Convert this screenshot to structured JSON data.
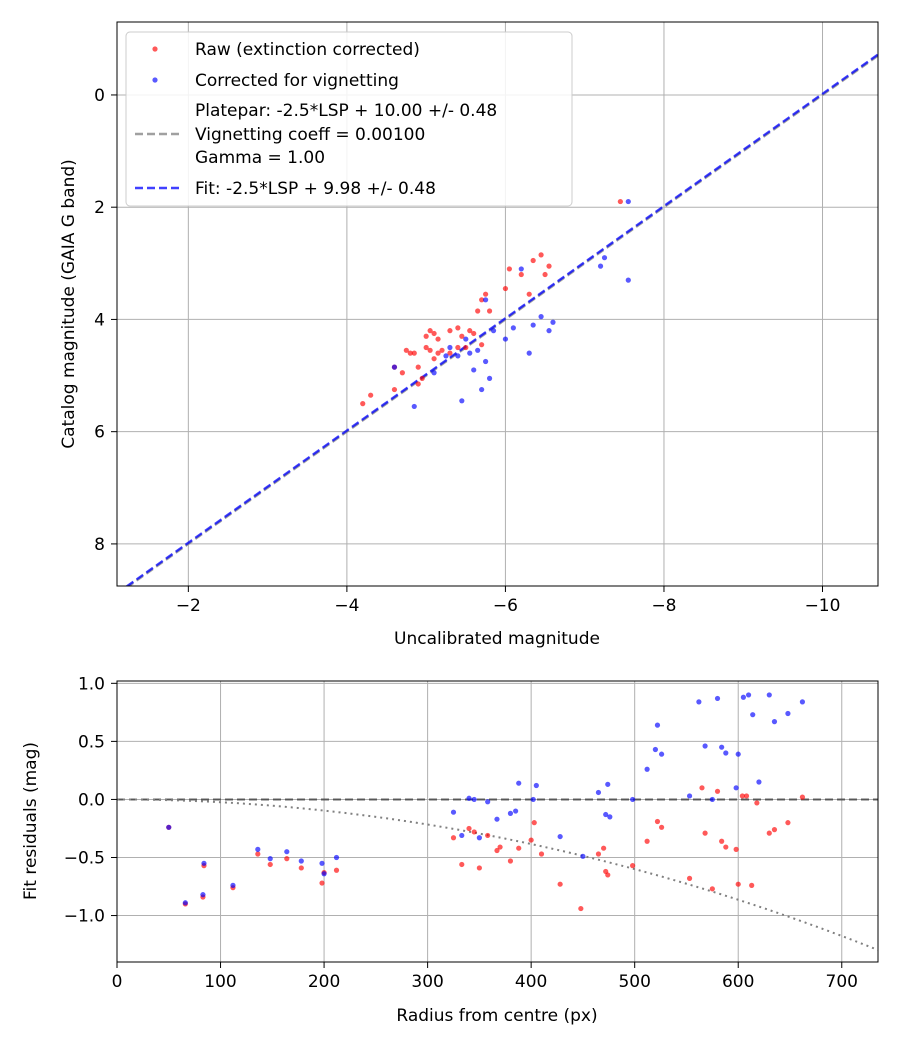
{
  "chart_data": [
    {
      "type": "scatter",
      "xlabel": "Uncalibrated magnitude",
      "ylabel": "Catalog magnitude (GAIA G band)",
      "xlim": [
        -1.1,
        -10.7
      ],
      "ylim": [
        8.75,
        -1.3
      ],
      "y_inverted": true,
      "grid": true,
      "legend_position": "top-left",
      "xticks": [
        -2,
        -4,
        -6,
        -8,
        -10
      ],
      "xtick_labels": [
        "−2",
        "−4",
        "−6",
        "−8",
        "−10"
      ],
      "yticks": [
        0,
        2,
        4,
        6,
        8
      ],
      "ytick_labels": [
        "0",
        "2",
        "4",
        "6",
        "8"
      ],
      "legend": [
        {
          "label": "Raw (extinction corrected)",
          "kind": "marker",
          "color": "#ff0000"
        },
        {
          "label": "Corrected for vignetting",
          "kind": "marker",
          "color": "#0000ff"
        },
        {
          "label": "Platepar: -2.5*LSP + 10.00 +/- 0.48",
          "kind": "line",
          "color": "#808080"
        },
        {
          "label": "Vignetting coeff = 0.00100",
          "kind": "text"
        },
        {
          "label": "Gamma = 1.00",
          "kind": "text"
        },
        {
          "label": "Fit: -2.5*LSP + 9.98 +/- 0.48",
          "kind": "line",
          "color": "#0000ff"
        }
      ],
      "lines": [
        {
          "name": "Platepar",
          "slope": -2.5,
          "intercept": 10.0,
          "color": "#808080",
          "dash": "dashed"
        },
        {
          "name": "Fit",
          "slope": -2.5,
          "intercept": 9.98,
          "color": "#0000ff",
          "dash": "dashed"
        }
      ],
      "series": [
        {
          "name": "Raw (extinction corrected)",
          "color": "#ff0000",
          "x": [
            -4.2,
            -4.3,
            -4.6,
            -4.6,
            -4.7,
            -4.75,
            -4.8,
            -4.85,
            -4.9,
            -4.9,
            -4.95,
            -5.0,
            -5.0,
            -5.05,
            -5.05,
            -5.1,
            -5.1,
            -5.15,
            -5.15,
            -5.2,
            -5.3,
            -5.3,
            -5.4,
            -5.4,
            -5.45,
            -5.5,
            -5.55,
            -5.6,
            -5.65,
            -5.7,
            -5.7,
            -5.75,
            -5.8,
            -6.0,
            -6.05,
            -6.2,
            -6.3,
            -6.35,
            -6.45,
            -6.5,
            -6.55,
            -7.45
          ],
          "y": [
            5.5,
            5.35,
            5.25,
            4.85,
            4.95,
            4.55,
            4.6,
            4.6,
            5.15,
            4.85,
            5.05,
            4.5,
            4.3,
            4.2,
            4.55,
            4.25,
            4.7,
            4.6,
            4.35,
            4.55,
            4.6,
            4.2,
            4.15,
            4.5,
            4.3,
            4.5,
            4.2,
            4.25,
            3.85,
            4.45,
            3.65,
            3.55,
            3.85,
            3.45,
            3.1,
            3.2,
            3.55,
            2.95,
            2.85,
            3.2,
            3.05,
            1.9
          ]
        },
        {
          "name": "Corrected for vignetting",
          "color": "#0000ff",
          "x": [
            -4.6,
            -4.85,
            -5.1,
            -5.25,
            -5.3,
            -5.4,
            -5.45,
            -5.5,
            -5.55,
            -5.6,
            -5.65,
            -5.7,
            -5.75,
            -5.75,
            -5.8,
            -5.85,
            -6.0,
            -6.1,
            -6.2,
            -6.3,
            -6.35,
            -6.45,
            -6.55,
            -6.6,
            -7.2,
            -7.25,
            -7.55,
            -7.55
          ],
          "y": [
            4.85,
            5.55,
            4.95,
            4.65,
            4.5,
            4.65,
            5.45,
            4.35,
            4.6,
            4.9,
            4.55,
            5.25,
            4.75,
            3.65,
            5.05,
            4.2,
            4.35,
            4.15,
            3.1,
            4.6,
            4.1,
            3.95,
            4.2,
            4.05,
            3.05,
            2.9,
            1.9,
            3.3
          ]
        }
      ]
    },
    {
      "type": "scatter",
      "xlabel": "Radius from centre (px)",
      "ylabel": "Fit residuals (mag)",
      "xlim": [
        0,
        735
      ],
      "ylim": [
        -1.4,
        1.02
      ],
      "grid": true,
      "xticks": [
        0,
        100,
        200,
        300,
        400,
        500,
        600,
        700
      ],
      "xtick_labels": [
        "0",
        "100",
        "200",
        "300",
        "400",
        "500",
        "600",
        "700"
      ],
      "yticks": [
        1.0,
        0.5,
        0.0,
        -0.5,
        -1.0
      ],
      "ytick_labels": [
        "1.0",
        "0.5",
        "0.0",
        "−0.5",
        "−1.0"
      ],
      "reference_lines": [
        {
          "name": "zero",
          "y": 0.0,
          "color": "#404040",
          "dash": "dashed"
        },
        {
          "name": "vignetting",
          "kind": "quadratic",
          "coeff": -2.4e-06,
          "color": "#808080",
          "dash": "dotted"
        }
      ],
      "series": [
        {
          "name": "Raw (extinction corrected)",
          "color": "#ff0000",
          "x": [
            50,
            66,
            83,
            84,
            112,
            136,
            148,
            164,
            178,
            198,
            200,
            212,
            325,
            333,
            340,
            345,
            350,
            358,
            367,
            370,
            380,
            388,
            400,
            403,
            410,
            428,
            448,
            465,
            470,
            472,
            474,
            498,
            512,
            522,
            526,
            553,
            565,
            568,
            575,
            580,
            584,
            588,
            598,
            600,
            604,
            608,
            613,
            618,
            630,
            635,
            648,
            662
          ],
          "y": [
            -0.24,
            -0.9,
            -0.84,
            -0.57,
            -0.76,
            -0.47,
            -0.56,
            -0.51,
            -0.59,
            -0.72,
            -0.63,
            -0.61,
            -0.33,
            -0.56,
            -0.25,
            -0.28,
            -0.59,
            -0.31,
            -0.44,
            -0.41,
            -0.53,
            -0.42,
            -0.35,
            -0.2,
            -0.47,
            -0.73,
            -0.94,
            -0.47,
            -0.42,
            -0.62,
            -0.65,
            -0.57,
            -0.36,
            -0.19,
            -0.24,
            -0.68,
            0.1,
            -0.29,
            -0.77,
            0.07,
            -0.36,
            -0.41,
            -0.43,
            -0.73,
            0.03,
            0.03,
            -0.74,
            -0.03,
            -0.29,
            -0.26,
            -0.2,
            0.02
          ]
        },
        {
          "name": "Corrected for vignetting",
          "color": "#0000ff",
          "x": [
            50,
            66,
            83,
            84,
            112,
            136,
            148,
            164,
            178,
            198,
            200,
            212,
            325,
            333,
            340,
            345,
            350,
            358,
            367,
            380,
            385,
            388,
            402,
            405,
            428,
            450,
            465,
            472,
            474,
            476,
            498,
            512,
            520,
            522,
            526,
            553,
            562,
            568,
            575,
            580,
            584,
            588,
            598,
            600,
            605,
            610,
            614,
            620,
            630,
            635,
            648,
            662
          ],
          "y": [
            -0.24,
            -0.89,
            -0.82,
            -0.55,
            -0.74,
            -0.43,
            -0.51,
            -0.45,
            -0.53,
            -0.55,
            -0.64,
            -0.5,
            -0.11,
            -0.31,
            0.01,
            0.0,
            -0.33,
            -0.02,
            -0.17,
            -0.12,
            -0.1,
            0.14,
            0.0,
            0.12,
            -0.32,
            -0.49,
            0.06,
            -0.13,
            0.13,
            -0.15,
            0.0,
            0.26,
            0.43,
            0.64,
            0.39,
            0.03,
            0.84,
            0.46,
            0.0,
            0.87,
            0.45,
            0.4,
            0.1,
            0.39,
            0.88,
            0.9,
            0.73,
            0.15,
            0.9,
            0.67,
            0.74,
            0.84
          ]
        }
      ]
    }
  ]
}
